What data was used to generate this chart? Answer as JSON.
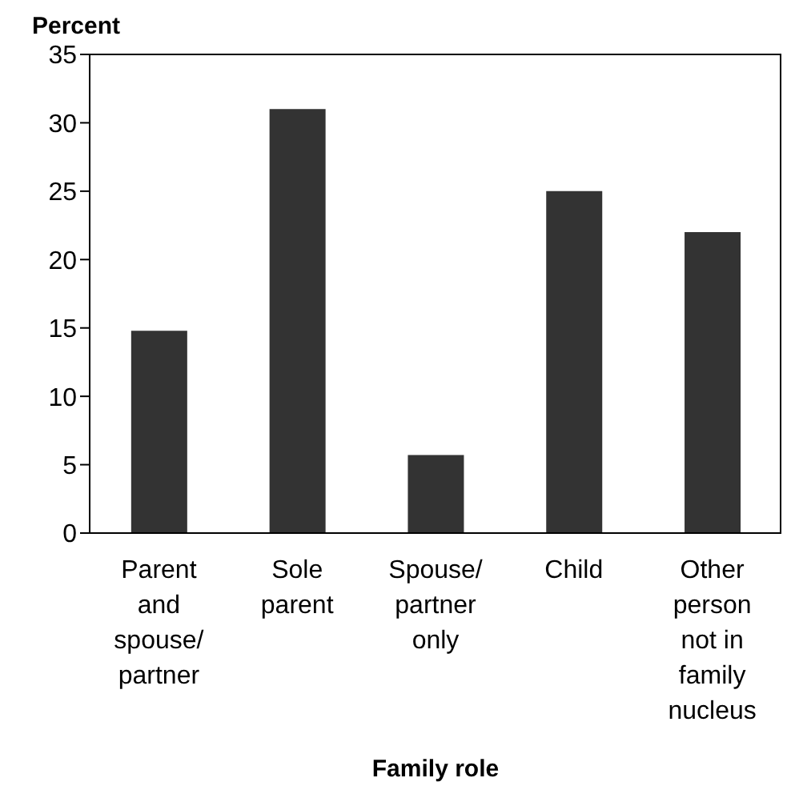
{
  "chart_data": {
    "type": "bar",
    "ylabel": "Percent",
    "xlabel": "Family role",
    "categories": [
      "Parent and spouse/ partner",
      "Sole parent",
      "Spouse/ partner only",
      "Child",
      "Other person not in family nucleus"
    ],
    "values": [
      14.8,
      31,
      5.7,
      25,
      22
    ],
    "color": "#333333",
    "ylim": [
      0,
      35
    ],
    "yticks": [
      0,
      5,
      10,
      15,
      20,
      25,
      30,
      35
    ],
    "grid": false
  }
}
